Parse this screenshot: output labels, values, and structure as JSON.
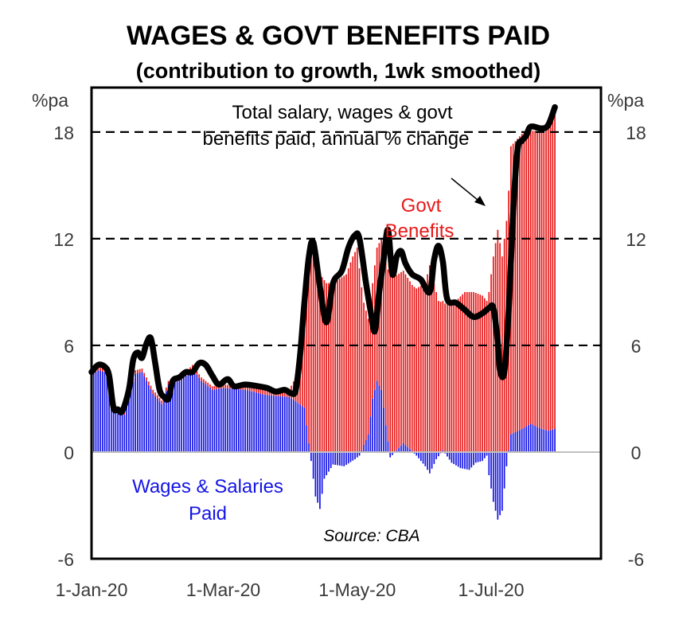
{
  "chart_data": {
    "type": "bar",
    "title": "WAGES & GOVT BENEFITS PAID",
    "subtitle": "(contribution to growth, 1wk smoothed)",
    "ylabel_left": "%pa",
    "ylabel_right": "%pa",
    "ylim": [
      -6,
      20.5
    ],
    "yticks": [
      -6,
      0,
      6,
      12,
      18
    ],
    "xtick_labels": [
      "1-Jan-20",
      "1-Mar-20",
      "1-May-20",
      "1-Jul-20"
    ],
    "xtick_days": [
      0,
      60,
      121,
      182
    ],
    "x_range_days": [
      0,
      232
    ],
    "dashed_gridlines": [
      6,
      12,
      18
    ],
    "annotations": {
      "total_line": "Total salary, wages & govt benefits paid, annual % change",
      "total_line_1": "Total salary, wages & govt",
      "total_line_2": "benefits paid, annual % change",
      "govt_1": "Govt",
      "govt_2": "Benefits",
      "wages_1": "Wages & Salaries",
      "wages_2": "Paid",
      "source": "Source: CBA"
    },
    "colors": {
      "wages": "#1414e6",
      "govt": "#e81818",
      "total": "#000000",
      "govt_text": "#e81818",
      "wages_text": "#1414e6"
    },
    "series": [
      {
        "name": "Wages & Salaries Paid",
        "key": "wages",
        "anchors": [
          [
            0,
            4.3
          ],
          [
            3,
            4.6
          ],
          [
            6,
            4.5
          ],
          [
            9,
            3.8
          ],
          [
            11,
            2.4
          ],
          [
            15,
            2.1
          ],
          [
            18,
            3.5
          ],
          [
            20,
            4.4
          ],
          [
            23,
            4.5
          ],
          [
            25,
            4.0
          ],
          [
            28,
            3.3
          ],
          [
            32,
            2.7
          ],
          [
            35,
            3.8
          ],
          [
            40,
            4.0
          ],
          [
            43,
            4.3
          ],
          [
            46,
            4.7
          ],
          [
            50,
            4.0
          ],
          [
            55,
            3.5
          ],
          [
            60,
            3.6
          ],
          [
            70,
            3.5
          ],
          [
            80,
            3.2
          ],
          [
            90,
            3.1
          ],
          [
            97,
            2.5
          ],
          [
            99,
            0.5
          ],
          [
            100,
            -0.5
          ],
          [
            102,
            -2.5
          ],
          [
            104,
            -3.2
          ],
          [
            106,
            -1.5
          ],
          [
            110,
            -0.7
          ],
          [
            115,
            -0.8
          ],
          [
            120,
            -0.4
          ],
          [
            122,
            -0.2
          ],
          [
            126,
            1.0
          ],
          [
            128,
            3.0
          ],
          [
            130,
            4.0
          ],
          [
            132,
            3.5
          ],
          [
            134,
            1.5
          ],
          [
            136,
            -0.3
          ],
          [
            142,
            0.5
          ],
          [
            148,
            -0.2
          ],
          [
            152,
            -0.8
          ],
          [
            154,
            -1.2
          ],
          [
            157,
            -0.4
          ],
          [
            160,
            0.1
          ],
          [
            164,
            -0.6
          ],
          [
            168,
            -0.9
          ],
          [
            172,
            -1.0
          ],
          [
            175,
            -0.6
          ],
          [
            178,
            -0.5
          ],
          [
            180,
            -0.2
          ],
          [
            181,
            -1.3
          ],
          [
            183,
            -2.8
          ],
          [
            185,
            -3.8
          ],
          [
            187,
            -3.3
          ],
          [
            189,
            -0.8
          ],
          [
            191,
            1.0
          ],
          [
            196,
            1.3
          ],
          [
            200,
            1.6
          ],
          [
            205,
            1.3
          ],
          [
            208,
            1.2
          ],
          [
            211,
            1.3
          ]
        ]
      },
      {
        "name": "Govt Benefits",
        "key": "govt",
        "anchors": [
          [
            0,
            0.2
          ],
          [
            40,
            0.2
          ],
          [
            70,
            0.2
          ],
          [
            90,
            0.4
          ],
          [
            95,
            2.0
          ],
          [
            97,
            6.0
          ],
          [
            99,
            11.0
          ],
          [
            101,
            12.0
          ],
          [
            104,
            10.0
          ],
          [
            107,
            9.5
          ],
          [
            110,
            9.5
          ],
          [
            116,
            10.0
          ],
          [
            119,
            11.0
          ],
          [
            121,
            11.5
          ],
          [
            124,
            8.0
          ],
          [
            126,
            6.5
          ],
          [
            128,
            6.5
          ],
          [
            131,
            8.0
          ],
          [
            133,
            9.0
          ],
          [
            136,
            10.0
          ],
          [
            142,
            9.7
          ],
          [
            148,
            9.2
          ],
          [
            152,
            9.5
          ],
          [
            154,
            10.5
          ],
          [
            156,
            9.5
          ],
          [
            158,
            8.5
          ],
          [
            162,
            8.3
          ],
          [
            166,
            8.5
          ],
          [
            170,
            9.0
          ],
          [
            174,
            9.0
          ],
          [
            178,
            8.8
          ],
          [
            180,
            8.5
          ],
          [
            181,
            9.0
          ],
          [
            183,
            11.0
          ],
          [
            185,
            12.5
          ],
          [
            187,
            11.0
          ],
          [
            189,
            13.0
          ],
          [
            191,
            16.2
          ],
          [
            196,
            16.6
          ],
          [
            200,
            16.5
          ],
          [
            205,
            16.7
          ],
          [
            208,
            17.0
          ],
          [
            211,
            17.8
          ]
        ]
      },
      {
        "name": "Total salary, wages & govt benefits paid, annual % change",
        "key": "total",
        "anchors": [
          [
            0,
            4.5
          ],
          [
            3,
            4.9
          ],
          [
            6,
            4.8
          ],
          [
            8,
            4.3
          ],
          [
            10,
            2.5
          ],
          [
            12,
            2.4
          ],
          [
            14,
            2.3
          ],
          [
            17,
            3.5
          ],
          [
            19,
            5.2
          ],
          [
            21,
            5.6
          ],
          [
            23,
            5.3
          ],
          [
            25,
            6.1
          ],
          [
            27,
            6.4
          ],
          [
            29,
            5.0
          ],
          [
            31,
            3.5
          ],
          [
            33,
            3.1
          ],
          [
            35,
            3.0
          ],
          [
            37,
            4.0
          ],
          [
            40,
            4.2
          ],
          [
            43,
            4.5
          ],
          [
            46,
            4.5
          ],
          [
            49,
            5.0
          ],
          [
            52,
            4.9
          ],
          [
            55,
            4.3
          ],
          [
            58,
            3.8
          ],
          [
            62,
            4.1
          ],
          [
            65,
            3.7
          ],
          [
            70,
            3.8
          ],
          [
            76,
            3.7
          ],
          [
            80,
            3.6
          ],
          [
            84,
            3.4
          ],
          [
            88,
            3.5
          ],
          [
            91,
            3.3
          ],
          [
            93,
            3.5
          ],
          [
            95,
            5.5
          ],
          [
            97,
            8.5
          ],
          [
            99,
            11.0
          ],
          [
            101,
            11.8
          ],
          [
            104,
            9.3
          ],
          [
            107,
            7.3
          ],
          [
            110,
            9.5
          ],
          [
            114,
            10.2
          ],
          [
            117,
            11.5
          ],
          [
            120,
            12.2
          ],
          [
            122,
            12.0
          ],
          [
            125,
            9.5
          ],
          [
            127,
            8.0
          ],
          [
            129,
            6.8
          ],
          [
            131,
            9.0
          ],
          [
            133,
            10.8
          ],
          [
            135,
            12.5
          ],
          [
            137,
            10.0
          ],
          [
            139,
            11.0
          ],
          [
            141,
            11.3
          ],
          [
            143,
            10.6
          ],
          [
            146,
            10.0
          ],
          [
            150,
            9.7
          ],
          [
            154,
            9.0
          ],
          [
            156,
            10.8
          ],
          [
            158,
            11.6
          ],
          [
            160,
            10.7
          ],
          [
            162,
            8.6
          ],
          [
            166,
            8.4
          ],
          [
            170,
            8.0
          ],
          [
            174,
            7.6
          ],
          [
            178,
            7.8
          ],
          [
            181,
            8.1
          ],
          [
            183,
            8.1
          ],
          [
            185,
            6.2
          ],
          [
            186,
            4.6
          ],
          [
            188,
            4.5
          ],
          [
            190,
            8.0
          ],
          [
            192,
            13.5
          ],
          [
            194,
            17.0
          ],
          [
            196,
            17.5
          ],
          [
            198,
            17.8
          ],
          [
            200,
            18.3
          ],
          [
            205,
            18.2
          ],
          [
            208,
            18.4
          ],
          [
            211,
            19.4
          ]
        ]
      }
    ]
  }
}
